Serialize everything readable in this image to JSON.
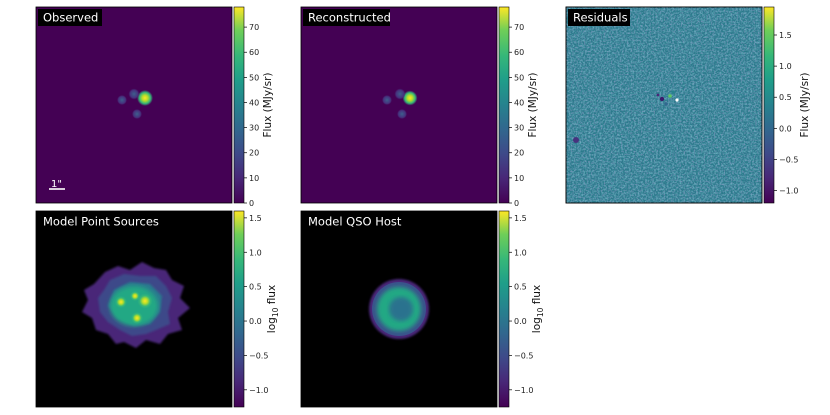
{
  "chart_data": [
    {
      "type": "heatmap",
      "title": "Observed",
      "colorbar": {
        "label": "Flux (MJy/sr)",
        "range": [
          0,
          78
        ],
        "ticks": [
          0,
          10,
          20,
          30,
          40,
          50,
          60,
          70
        ],
        "tick_labels": [
          "0",
          "10",
          "20",
          "30",
          "40",
          "50",
          "60",
          "70"
        ]
      },
      "scale_bar": "1\"",
      "colormap": "viridis"
    },
    {
      "type": "heatmap",
      "title": "Reconstructed",
      "colorbar": {
        "label": "Flux (MJy/sr)",
        "range": [
          0,
          78
        ],
        "ticks": [
          0,
          10,
          20,
          30,
          40,
          50,
          60,
          70
        ],
        "tick_labels": [
          "0",
          "10",
          "20",
          "30",
          "40",
          "50",
          "60",
          "70"
        ]
      },
      "colormap": "viridis"
    },
    {
      "type": "heatmap",
      "title": "Residuals",
      "colorbar": {
        "label": "Flux (MJy/sr)",
        "range": [
          -1.2,
          1.95
        ],
        "ticks": [
          -1.0,
          -0.5,
          0.0,
          0.5,
          1.0,
          1.5
        ],
        "tick_labels": [
          "−1.0",
          "−0.5",
          "0.0",
          "0.5",
          "1.0",
          "1.5"
        ]
      },
      "colormap": "viridis"
    },
    {
      "type": "heatmap",
      "title": "Model Point Sources",
      "colorbar": {
        "label_main": "log",
        "label_sub": "10",
        "label_rest": " flux",
        "range": [
          -1.25,
          1.6
        ],
        "ticks": [
          -1.0,
          -0.5,
          0.0,
          0.5,
          1.0,
          1.5
        ],
        "tick_labels": [
          "−1.0",
          "−0.5",
          "0.0",
          "0.5",
          "1.0",
          "1.5"
        ]
      },
      "colormap": "viridis"
    },
    {
      "type": "heatmap",
      "title": "Model QSO Host",
      "colorbar": {
        "label_main": "log",
        "label_sub": "10",
        "label_rest": " flux",
        "range": [
          -1.25,
          1.6
        ],
        "ticks": [
          -1.0,
          -0.5,
          0.0,
          0.5,
          1.0,
          1.5
        ],
        "tick_labels": [
          "−1.0",
          "−0.5",
          "0.0",
          "0.5",
          "1.0",
          "1.5"
        ]
      },
      "colormap": "viridis"
    }
  ]
}
